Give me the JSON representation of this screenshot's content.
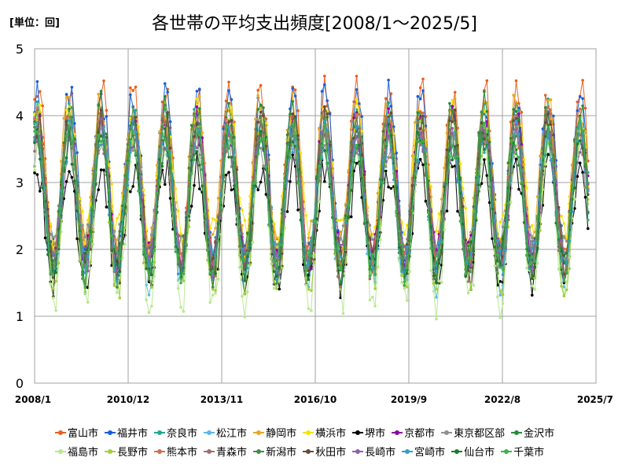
{
  "chart_data": {
    "type": "line",
    "title": "各世帯の平均支出頻度[2008/1～2025/5]",
    "unit_label": "[単位：回]",
    "ylim": [
      0,
      5
    ],
    "yticks": [
      "0",
      "1",
      "2",
      "3",
      "4",
      "5"
    ],
    "xlim": [
      "2008/1",
      "2025/7"
    ],
    "xticks": [
      "2008/1",
      "2010/12",
      "2013/11",
      "2016/10",
      "2019/9",
      "2022/8",
      "2025/7"
    ],
    "grid": true,
    "legend_position": "bottom",
    "months": 209,
    "months_note": "monthly points from 2008/1 to 2025/5",
    "series": [
      {
        "name": "富山市",
        "color": "#E8601C",
        "peak": 4.4,
        "trough": 1.85
      },
      {
        "name": "福井市",
        "color": "#1560D8",
        "peak": 4.3,
        "trough": 1.9
      },
      {
        "name": "奈良市",
        "color": "#20A88A",
        "peak": 4.0,
        "trough": 1.8
      },
      {
        "name": "松江市",
        "color": "#5BB8E8",
        "peak": 3.9,
        "trough": 1.55
      },
      {
        "name": "静岡市",
        "color": "#E8A820",
        "peak": 4.2,
        "trough": 2.0
      },
      {
        "name": "横浜市",
        "color": "#F8E000",
        "peak": 4.0,
        "trough": 2.2
      },
      {
        "name": "堺市",
        "color": "#000000",
        "peak": 3.2,
        "trough": 1.55
      },
      {
        "name": "京都市",
        "color": "#8E00A8",
        "peak": 3.9,
        "trough": 1.85
      },
      {
        "name": "東京都区部",
        "color": "#909090",
        "peak": 3.6,
        "trough": 2.0
      },
      {
        "name": "金沢市",
        "color": "#2A8A3A",
        "peak": 4.1,
        "trough": 1.8
      },
      {
        "name": "福島市",
        "color": "#B8E890",
        "peak": 3.7,
        "trough": 1.2
      },
      {
        "name": "長野市",
        "color": "#A0D040",
        "peak": 3.8,
        "trough": 1.4
      },
      {
        "name": "熊本市",
        "color": "#D07050",
        "peak": 3.9,
        "trough": 1.8
      },
      {
        "name": "青森市",
        "color": "#A07070",
        "peak": 3.8,
        "trough": 1.7
      },
      {
        "name": "新潟市",
        "color": "#4A8A4A",
        "peak": 3.9,
        "trough": 1.7
      },
      {
        "name": "秋田市",
        "color": "#6A4A3A",
        "peak": 3.9,
        "trough": 1.75
      },
      {
        "name": "長崎市",
        "color": "#9060B0",
        "peak": 3.7,
        "trough": 1.8
      },
      {
        "name": "宮崎市",
        "color": "#30A0C8",
        "peak": 3.7,
        "trough": 1.75
      },
      {
        "name": "仙台市",
        "color": "#1E7A2E",
        "peak": 3.6,
        "trough": 1.75
      },
      {
        "name": "千葉市",
        "color": "#40B050",
        "peak": 3.7,
        "trough": 1.7
      }
    ]
  }
}
